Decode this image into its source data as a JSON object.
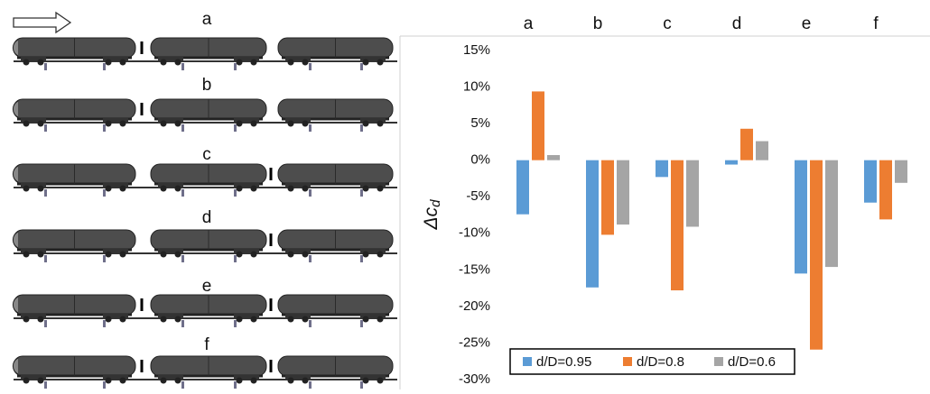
{
  "chart_data": {
    "type": "bar",
    "panels": [
      "a",
      "b",
      "c",
      "d",
      "e",
      "f"
    ],
    "categories": [
      "a",
      "b",
      "c",
      "d",
      "e",
      "f"
    ],
    "y_label": "Δc",
    "y_label_subscript": "d",
    "series": [
      {
        "name": "d/D=0.95",
        "color": "#5b9bd5",
        "values": [
          -7.4,
          -17.4,
          -2.3,
          -0.6,
          -15.5,
          -5.8
        ]
      },
      {
        "name": "d/D=0.8",
        "color": "#ed7d31",
        "values": [
          9.4,
          -10.2,
          -17.8,
          4.3,
          -25.9,
          -8.1
        ]
      },
      {
        "name": "d/D=0.6",
        "color": "#a5a5a5",
        "values": [
          0.7,
          -8.8,
          -9.1,
          2.6,
          -14.6,
          -3.1
        ]
      }
    ],
    "ylim": [
      -30,
      15
    ],
    "yticks": [
      {
        "value": -30,
        "label": "-30%"
      },
      {
        "value": -25,
        "label": "-25%"
      },
      {
        "value": -20,
        "label": "-20%"
      },
      {
        "value": -15,
        "label": "-15%"
      },
      {
        "value": -10,
        "label": "-10%"
      },
      {
        "value": -5,
        "label": "-5%"
      },
      {
        "value": 0,
        "label": "0%"
      },
      {
        "value": 5,
        "label": "5%"
      },
      {
        "value": 10,
        "label": "10%"
      },
      {
        "value": 15,
        "label": "15%"
      }
    ],
    "legend": "bottom-left"
  }
}
